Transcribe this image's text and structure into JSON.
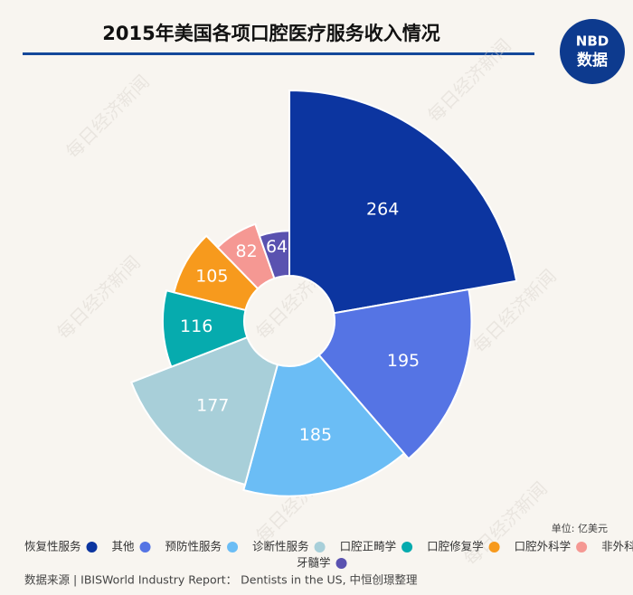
{
  "chart_data": {
    "type": "rose",
    "title": "2015年美国各项口腔医疗服务收入情况",
    "unit": "单位: 亿美元",
    "source": "数据来源 | IBISWorld Industry Report： Dentists in the US, 中恒创璟整理",
    "logo": {
      "top": "NBD",
      "bottom": "数据"
    },
    "watermark": "每日经济新闻",
    "categories": [
      "恢复性服务",
      "其他",
      "预防性服务",
      "诊断性服务",
      "口腔正畸学",
      "口腔修复学",
      "口腔外科学",
      "非外科",
      "牙髓学"
    ],
    "values": [
      264,
      195,
      185,
      177,
      116,
      105,
      82,
      null,
      64
    ],
    "colors": [
      "#0c35a0",
      "#5574e4",
      "#6bbdf5",
      "#a8cfd9",
      "#06abae",
      "#f79a1d",
      "#f59893",
      "#9ad39a",
      "#5a52b0"
    ]
  }
}
